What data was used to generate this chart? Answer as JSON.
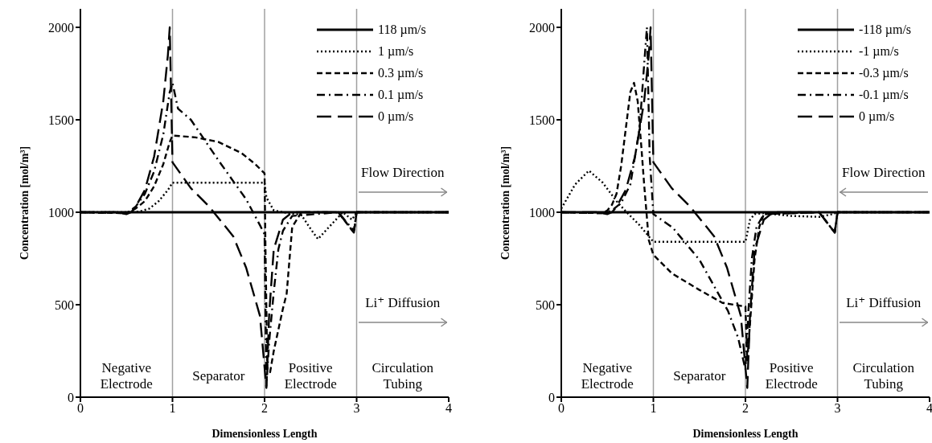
{
  "chart_data": [
    {
      "type": "line",
      "xlabel": "Dimensionless Length",
      "ylabel": "Concentration  [mol/m³]",
      "xlim": [
        0,
        4
      ],
      "xticks": [
        0,
        1,
        2,
        3,
        4
      ],
      "ylim": [
        0,
        2100
      ],
      "yticks": [
        0,
        500,
        1000,
        1500,
        2000
      ],
      "legend": "top right",
      "ref_lines": [
        {
          "axis": "x",
          "value": 1,
          "color": "#a0a0a0"
        },
        {
          "axis": "x",
          "value": 2,
          "color": "#a0a0a0"
        },
        {
          "axis": "x",
          "value": 3,
          "color": "#a0a0a0"
        }
      ],
      "annotations": [
        "Negative Electrode",
        "Separator",
        "Positive Electrode",
        "Circulation Tubing",
        "Flow Direction",
        "Li⁺ Diffusion"
      ],
      "series": [
        {
          "name": "118 µm/s",
          "color": "#000000",
          "line_style": "solid",
          "x": [
            0,
            4
          ],
          "values": [
            1000,
            1000
          ]
        },
        {
          "name": "1 µm/s",
          "color": "#000000",
          "line_style": "dotted",
          "x": [
            0,
            0.55,
            0.65,
            0.75,
            0.85,
            0.95,
            1.0,
            1.5,
            2.0,
            2.02,
            2.1,
            2.2,
            2.4,
            2.5,
            2.58,
            2.7,
            2.85,
            2.95,
            3.0,
            4
          ],
          "values": [
            1000,
            1000,
            1005,
            1020,
            1060,
            1120,
            1160,
            1160,
            1160,
            1080,
            1010,
            1000,
            985,
            910,
            855,
            920,
            1000,
            960,
            1000,
            1000
          ]
        },
        {
          "name": "0.3 µm/s",
          "color": "#000000",
          "line_style": "dashed",
          "x": [
            0,
            0.5,
            0.6,
            0.7,
            0.8,
            0.9,
            0.97,
            1.0,
            1.25,
            1.5,
            1.75,
            1.9,
            2.0,
            2.01,
            2.03,
            2.06,
            2.1,
            2.2,
            2.24,
            2.3,
            2.4,
            2.8,
            2.97,
            3.0,
            4
          ],
          "values": [
            1000,
            995,
            1020,
            1060,
            1140,
            1260,
            1380,
            1415,
            1405,
            1380,
            1320,
            1260,
            1210,
            800,
            150,
            135,
            250,
            480,
            560,
            920,
            1000,
            1000,
            890,
            1000,
            1000
          ]
        },
        {
          "name": "0.1 µm/s",
          "color": "#000000",
          "line_style": "dashdot",
          "x": [
            0,
            0.5,
            0.6,
            0.7,
            0.8,
            0.9,
            0.97,
            1.0,
            1.06,
            1.2,
            1.5,
            1.8,
            1.95,
            2.0,
            2.02,
            2.05,
            2.1,
            2.15,
            2.2,
            2.3,
            2.8,
            2.97,
            3.0,
            4
          ],
          "values": [
            1000,
            995,
            1030,
            1100,
            1220,
            1420,
            1650,
            1700,
            1560,
            1500,
            1280,
            1070,
            930,
            880,
            60,
            300,
            570,
            800,
            900,
            980,
            1000,
            900,
            1000,
            1000
          ]
        },
        {
          "name": "0 µm/s",
          "color": "#000000",
          "line_style": "longdash",
          "x": [
            0,
            0.4,
            0.5,
            0.55,
            0.6,
            0.7,
            0.8,
            0.9,
            0.95,
            0.97,
            1.0,
            1.2,
            1.4,
            1.66,
            1.8,
            1.95,
            2.02,
            2.05,
            2.1,
            2.2,
            2.3,
            2.8,
            2.97,
            3.0,
            4
          ],
          "values": [
            1000,
            1000,
            990,
            1000,
            1030,
            1120,
            1300,
            1600,
            1850,
            2000,
            1270,
            1130,
            1030,
            870,
            700,
            440,
            50,
            450,
            800,
            960,
            1000,
            1000,
            890,
            1000,
            1000
          ]
        }
      ]
    },
    {
      "type": "line",
      "xlabel": "Dimensionless Length",
      "ylabel": "Concentration  [mol/m³]",
      "xlim": [
        0,
        4
      ],
      "xticks": [
        0,
        1,
        2,
        3,
        4
      ],
      "ylim": [
        0,
        2100
      ],
      "yticks": [
        0,
        500,
        1000,
        1500,
        2000
      ],
      "legend": "top right",
      "ref_lines": [
        {
          "axis": "x",
          "value": 1,
          "color": "#a0a0a0"
        },
        {
          "axis": "x",
          "value": 2,
          "color": "#a0a0a0"
        },
        {
          "axis": "x",
          "value": 3,
          "color": "#a0a0a0"
        }
      ],
      "annotations": [
        "Negative Electrode",
        "Separator",
        "Positive Electrode",
        "Circulation Tubing",
        "Flow Direction",
        "Li⁺ Diffusion"
      ],
      "series": [
        {
          "name": "-118 µm/s",
          "color": "#000000",
          "line_style": "solid",
          "x": [
            0,
            4
          ],
          "values": [
            1000,
            1000
          ]
        },
        {
          "name": "-1 µm/s",
          "color": "#000000",
          "line_style": "dotted",
          "x": [
            0,
            0.15,
            0.3,
            0.45,
            0.6,
            0.7,
            0.85,
            0.95,
            1.0,
            1.5,
            2.0,
            2.05,
            2.1,
            2.2,
            2.5,
            2.8,
            2.95,
            3.0,
            4
          ],
          "values": [
            1020,
            1150,
            1225,
            1160,
            1060,
            1005,
            930,
            870,
            840,
            840,
            840,
            960,
            990,
            995,
            980,
            975,
            990,
            1000,
            1000
          ]
        },
        {
          "name": "-0.3 µm/s",
          "color": "#000000",
          "line_style": "dashed",
          "x": [
            0,
            0.45,
            0.5,
            0.55,
            0.6,
            0.65,
            0.7,
            0.75,
            0.79,
            0.83,
            0.87,
            0.9,
            0.95,
            1.0,
            1.2,
            1.5,
            1.75,
            2.0,
            2.02,
            2.05,
            2.1,
            2.15,
            2.2,
            2.8,
            2.97,
            3.0,
            4
          ],
          "values": [
            1000,
            995,
            1010,
            1040,
            1100,
            1250,
            1450,
            1650,
            1700,
            1600,
            1350,
            1150,
            850,
            770,
            670,
            580,
            510,
            490,
            200,
            400,
            750,
            920,
            990,
            1000,
            890,
            1000,
            1000
          ]
        },
        {
          "name": "-0.1 µm/s",
          "color": "#000000",
          "line_style": "dashdot",
          "x": [
            0,
            0.45,
            0.55,
            0.65,
            0.75,
            0.85,
            0.9,
            0.93,
            0.96,
            1.0,
            1.21,
            1.5,
            1.81,
            1.92,
            2.0,
            2.03,
            2.07,
            2.12,
            2.2,
            2.8,
            2.97,
            3.0,
            4
          ],
          "values": [
            1000,
            995,
            1010,
            1050,
            1150,
            1450,
            1800,
            2000,
            1300,
            990,
            917,
            743,
            467,
            322,
            150,
            450,
            750,
            920,
            990,
            1000,
            890,
            1000,
            1000
          ]
        },
        {
          "name": "0 µm/s",
          "color": "#000000",
          "line_style": "longdash",
          "x": [
            0,
            0.4,
            0.5,
            0.55,
            0.6,
            0.7,
            0.8,
            0.9,
            0.95,
            0.97,
            1.0,
            1.2,
            1.4,
            1.66,
            1.8,
            1.95,
            2.02,
            2.05,
            2.1,
            2.2,
            2.3,
            2.8,
            2.97,
            3.0,
            4
          ],
          "values": [
            1000,
            1000,
            990,
            1000,
            1030,
            1120,
            1300,
            1600,
            1850,
            2000,
            1270,
            1130,
            1030,
            870,
            700,
            440,
            50,
            450,
            800,
            960,
            1000,
            1000,
            890,
            1000,
            1000
          ]
        }
      ]
    }
  ]
}
